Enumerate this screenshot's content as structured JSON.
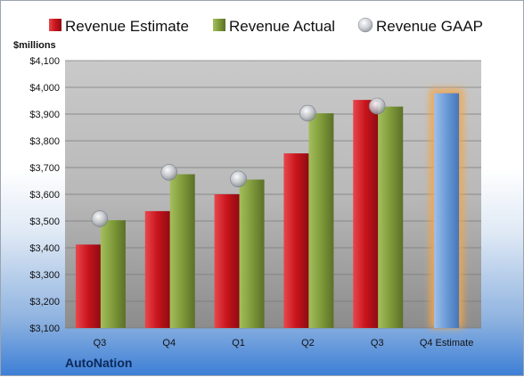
{
  "chart_data": {
    "type": "bar",
    "unit_label": "$millions",
    "categories": [
      "Q3",
      "Q4",
      "Q1",
      "Q2",
      "Q3",
      "Q4 Estimate"
    ],
    "series": [
      {
        "name": "Revenue Estimate",
        "values": [
          3412,
          3537,
          3600,
          3753,
          3953,
          3978
        ]
      },
      {
        "name": "Revenue Actual",
        "values": [
          3503,
          3675,
          3655,
          3903,
          3928,
          null
        ]
      },
      {
        "name": "Revenue GAAP",
        "values": [
          3508,
          3682,
          3657,
          3903,
          3930,
          null
        ]
      }
    ],
    "ylim": [
      3100,
      4100
    ],
    "yticks": [
      "$3,100",
      "$3,200",
      "$3,300",
      "$3,400",
      "$3,500",
      "$3,600",
      "$3,700",
      "$3,800",
      "$3,900",
      "$4,000",
      "$4,100"
    ],
    "legend_position": "top",
    "grid": true,
    "colors": {
      "estimate": "#c8141c",
      "actual": "#7f9a3a",
      "gaap": "#b8bcc4",
      "highlight": "#6a9ad6",
      "glow": "#f3a64a"
    }
  },
  "company": "AutoNation"
}
